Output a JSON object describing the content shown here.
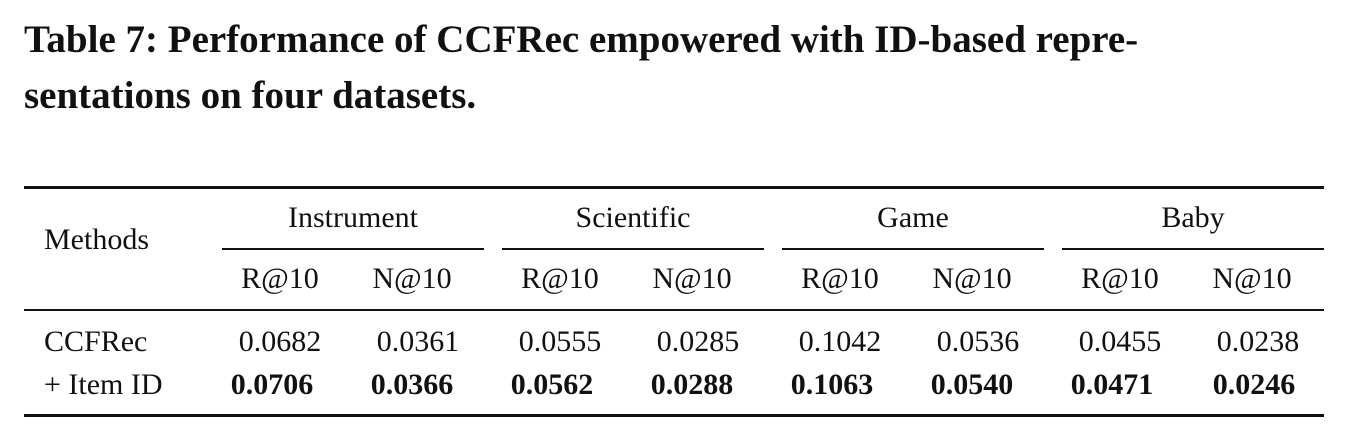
{
  "caption": {
    "line1": "Table 7: Performance of CCFRec empowered with ID-based repre-",
    "line2": "sentations on four datasets."
  },
  "table": {
    "methods_header": "Methods",
    "datasets": [
      "Instrument",
      "Scientific",
      "Game",
      "Baby"
    ],
    "metrics": [
      "R@10",
      "N@10",
      "R@10",
      "N@10",
      "R@10",
      "N@10",
      "R@10",
      "N@10"
    ],
    "rows": [
      {
        "method": "CCFRec",
        "values": [
          "0.0682",
          "0.0361",
          "0.0555",
          "0.0285",
          "0.1042",
          "0.0536",
          "0.0455",
          "0.0238"
        ],
        "bold": false
      },
      {
        "method": "+ Item ID",
        "values": [
          "0.0706",
          "0.0366",
          "0.0562",
          "0.0288",
          "0.1063",
          "0.0540",
          "0.0471",
          "0.0246"
        ],
        "bold": true
      }
    ]
  }
}
